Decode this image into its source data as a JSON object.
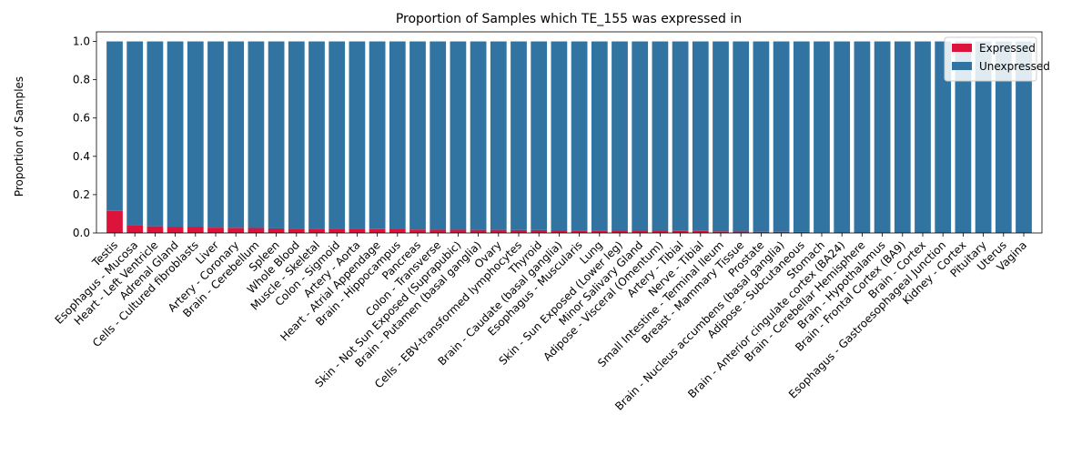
{
  "chart_data": {
    "type": "bar",
    "stacked": true,
    "title": "Proportion of Samples which TE_155 was expressed in",
    "xlabel": "",
    "ylabel": "Proportion of Samples",
    "ylim": [
      0,
      1.05
    ],
    "yticks": [
      "0.0",
      "0.2",
      "0.4",
      "0.6",
      "0.8",
      "1.0"
    ],
    "grid": false,
    "legend_position": "top-right",
    "categories": [
      "Testis",
      "Esophagus - Mucosa",
      "Heart - Left Ventricle",
      "Adrenal Gland",
      "Cells - Cultured fibroblasts",
      "Liver",
      "Artery - Coronary",
      "Brain - Cerebellum",
      "Spleen",
      "Whole Blood",
      "Muscle - Skeletal",
      "Colon - Sigmoid",
      "Artery - Aorta",
      "Heart - Atrial Appendage",
      "Brain - Hippocampus",
      "Pancreas",
      "Colon - Transverse",
      "Skin - Not Sun Exposed (Suprapubic)",
      "Brain - Putamen (basal ganglia)",
      "Ovary",
      "Cells - EBV-transformed lymphocytes",
      "Thyroid",
      "Brain - Caudate (basal ganglia)",
      "Esophagus - Muscularis",
      "Lung",
      "Skin - Sun Exposed (Lower leg)",
      "Minor Salivary Gland",
      "Adipose - Visceral (Omentum)",
      "Artery - Tibial",
      "Nerve - Tibial",
      "Small Intestine - Terminal Ileum",
      "Breast - Mammary Tissue",
      "Prostate",
      "Brain - Nucleus accumbens (basal ganglia)",
      "Adipose - Subcutaneous",
      "Stomach",
      "Brain - Anterior cingulate cortex (BA24)",
      "Brain - Cerebellar Hemisphere",
      "Brain - Hypothalamus",
      "Brain - Frontal Cortex (BA9)",
      "Brain - Cortex",
      "Esophagus - Gastroesophageal Junction",
      "Kidney - Cortex",
      "Pituitary",
      "Uterus",
      "Vagina"
    ],
    "series": [
      {
        "name": "Expressed",
        "color": "#dc143c",
        "values": [
          0.115,
          0.04,
          0.035,
          0.033,
          0.033,
          0.028,
          0.027,
          0.026,
          0.024,
          0.023,
          0.022,
          0.021,
          0.021,
          0.02,
          0.019,
          0.018,
          0.017,
          0.017,
          0.016,
          0.016,
          0.015,
          0.015,
          0.014,
          0.013,
          0.013,
          0.012,
          0.012,
          0.012,
          0.011,
          0.01,
          0.008,
          0.007,
          0.006,
          0.006,
          0.005,
          0.004,
          0,
          0,
          0,
          0,
          0,
          0,
          0,
          0,
          0,
          0
        ]
      },
      {
        "name": "Unexpressed",
        "color": "#3274a1",
        "values": [
          0.885,
          0.96,
          0.965,
          0.967,
          0.967,
          0.972,
          0.973,
          0.974,
          0.976,
          0.977,
          0.978,
          0.979,
          0.979,
          0.98,
          0.981,
          0.982,
          0.983,
          0.983,
          0.984,
          0.984,
          0.985,
          0.985,
          0.986,
          0.987,
          0.987,
          0.988,
          0.988,
          0.988,
          0.989,
          0.99,
          0.992,
          0.993,
          0.994,
          0.994,
          0.995,
          0.996,
          1,
          1,
          1,
          1,
          1,
          1,
          1,
          1,
          1,
          1
        ]
      }
    ]
  }
}
